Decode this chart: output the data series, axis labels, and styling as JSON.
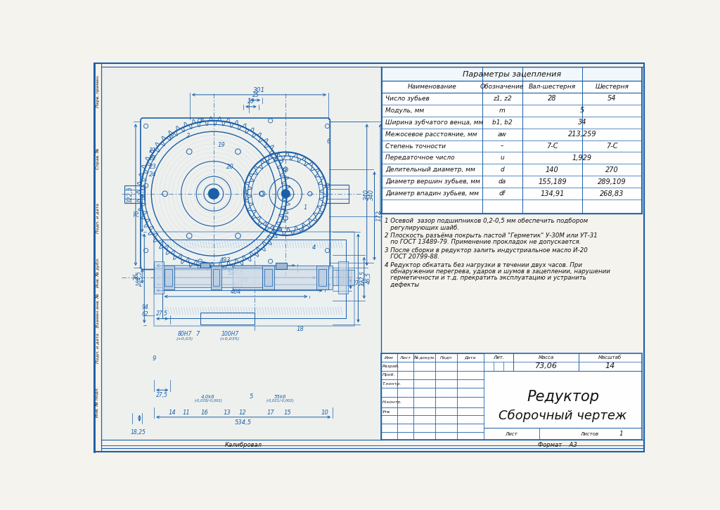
{
  "bg_color": "#f0ede6",
  "page_bg": "#f5f3ee",
  "border_color": "#1a5fa8",
  "line_color": "#1a5fa8",
  "dim_color": "#1a5fa8",
  "text_color": "#111111",
  "table_title": "Параметры зацепления",
  "table_headers": [
    "Наименование",
    "Обозначение",
    "Вал-шестерня",
    "Шестерня"
  ],
  "table_rows": [
    [
      "Число зубьев",
      "z1, z2",
      "28",
      "54"
    ],
    [
      "Модуль, мм",
      "m",
      "5",
      ""
    ],
    [
      "Ширина зубчатого венца, мм",
      "b1, b2",
      "34",
      ""
    ],
    [
      "Межосевое расстояние, мм",
      "aw",
      "213,259",
      ""
    ],
    [
      "Степень точности",
      "–",
      "7-С",
      "7-С"
    ],
    [
      "Передаточное число",
      "u",
      "1,929",
      ""
    ],
    [
      "Делительный диаметр, мм",
      "d",
      "140",
      "270"
    ],
    [
      "Диаметр вершин зубьев, мм",
      "da",
      "155,189",
      "289,109"
    ],
    [
      "Диаметр впадин зубьев, мм",
      "df",
      "134,91",
      "268,83"
    ]
  ],
  "notes": [
    "1 Осевой  зазор подшипников 0,2-0,5 мм обеспечить подбором\n   регулирующих шайб.",
    "2 Плоскость разъёма покрыть пастой \"Герметик\" У-30М или УТ-31\n   по ГОСТ 13489-79. Применение прокладок не допускается.",
    "3 После сборки в редуктор залить индустриальное масло И-20\n   ГОСТ 20799-88.",
    "4 Редуктор обкатать без нагрузки в течении двух часов. При\n   обнаружении перегрева, ударов и шумов в зацеплении, нарушении\n   герметичности и т.д. прекратить эксплуатацию и устранить\n   дефекты"
  ],
  "mass": "73,06",
  "scale": "14",
  "sheet_num": "1",
  "sheets_total": "1",
  "title_line1": "Редуктор",
  "title_line2": "Сборочный чертеж",
  "калибровал": "Калибровал",
  "формат": "Формат    А3"
}
